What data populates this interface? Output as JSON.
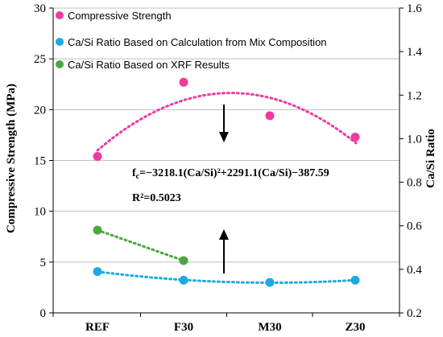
{
  "chart_data": {
    "type": "scatter",
    "categories": [
      "REF",
      "F30",
      "M30",
      "Z30"
    ],
    "ylabel_left": "Compressive Strength (MPa)",
    "ylabel_right": "Ca/Si Ratio",
    "ylim_left": [
      0,
      30
    ],
    "ylim_right": [
      0.2,
      1.6
    ],
    "yticks_left": [
      "0",
      "5",
      "10",
      "15",
      "20",
      "25",
      "30"
    ],
    "yticks_right": [
      "0.2",
      "0.4",
      "0.6",
      "0.8",
      "1.0",
      "1.2",
      "1.4",
      "1.6"
    ],
    "grid": true,
    "legend_position": "top-left",
    "series": [
      {
        "name": "Compressive Strength",
        "axis": "left",
        "color": "#ec3ba0",
        "values": [
          15.4,
          22.7,
          19.4,
          17.3
        ],
        "trend": "polynomial"
      },
      {
        "name": "Ca/Si Ratio Based on Calculation from Mix Composition",
        "axis": "right",
        "color": "#1ea9e1",
        "values": [
          0.39,
          0.35,
          0.34,
          0.35
        ],
        "trend": "polynomial"
      },
      {
        "name": "Ca/Si Ratio Based on XRF Results",
        "axis": "right",
        "color": "#4aa83e",
        "values": [
          0.58,
          0.44,
          null,
          null
        ],
        "trend": "polynomial"
      }
    ],
    "annotations": {
      "equation_prefix": "f",
      "equation_subscript": "c",
      "equation_body": "=−3218.1(Ca/Si)²+2291.1(Ca/Si)−387.59",
      "r_squared": "R²=0.5023"
    }
  }
}
